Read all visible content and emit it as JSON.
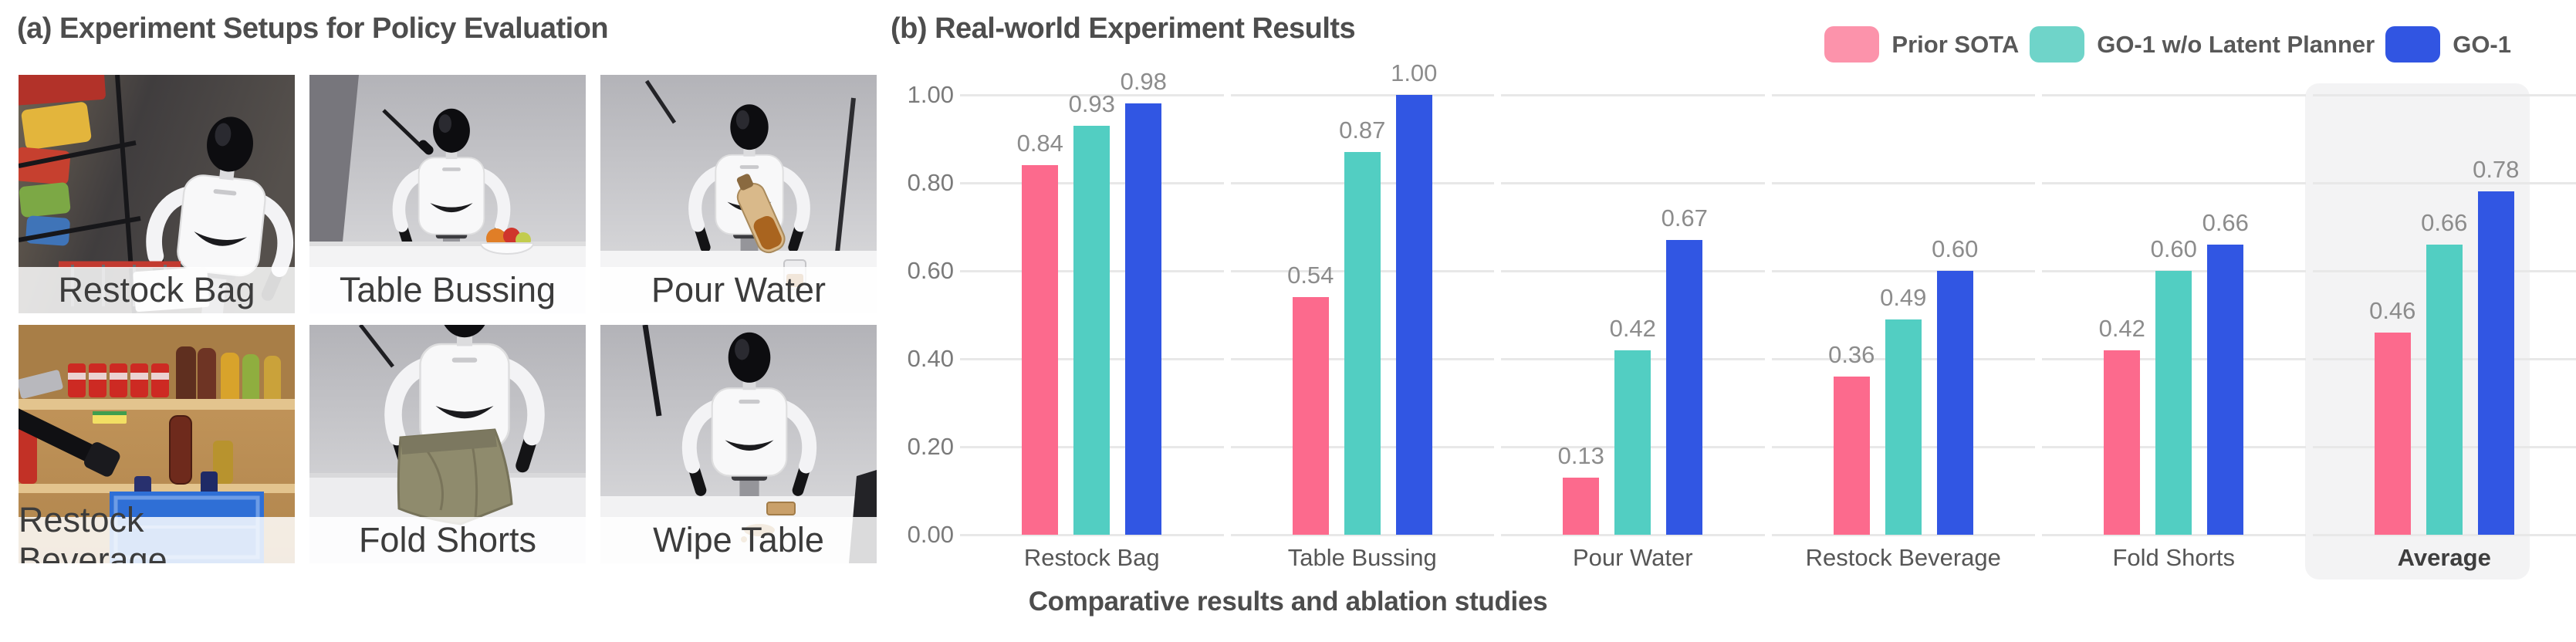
{
  "figure": {
    "caption": "Comparative results and ablation studies"
  },
  "panel_a": {
    "title": "(a) Experiment Setups for Policy Evaluation",
    "photos": [
      {
        "label": "Restock Bag",
        "scene": "restock-bag"
      },
      {
        "label": "Table Bussing",
        "scene": "table-bussing"
      },
      {
        "label": "Pour Water",
        "scene": "pour-water"
      },
      {
        "label": "Restock Beverage",
        "scene": "restock-beverage"
      },
      {
        "label": "Fold Shorts",
        "scene": "fold-shorts"
      },
      {
        "label": "Wipe Table",
        "scene": "wipe-table"
      }
    ]
  },
  "panel_b": {
    "title": "(b) Real-world Experiment Results",
    "legend": [
      {
        "label": "Prior SOTA",
        "swatch_color": "#FC93AB"
      },
      {
        "label": "GO-1 w/o Latent Planner",
        "swatch_color": "#6FD4C9"
      },
      {
        "label": "GO-1",
        "swatch_color": "#3155E2"
      }
    ]
  },
  "chart_data": {
    "type": "bar",
    "title": "(b) Real-world Experiment Results",
    "categories": [
      "Restock Bag",
      "Table Bussing",
      "Pour Water",
      "Restock Beverage",
      "Fold Shorts",
      "Average"
    ],
    "series": [
      {
        "name": "Prior SOTA",
        "color": "#FC6A8D",
        "values": [
          0.84,
          0.54,
          0.13,
          0.36,
          0.42,
          0.46
        ]
      },
      {
        "name": "GO-1 w/o Latent Planner",
        "color": "#52CEC2",
        "values": [
          0.93,
          0.87,
          0.42,
          0.49,
          0.6,
          0.66
        ]
      },
      {
        "name": "GO-1",
        "color": "#3156E3",
        "values": [
          0.98,
          1.0,
          0.67,
          0.6,
          0.66,
          0.78
        ]
      }
    ],
    "xlabel": "",
    "ylabel": "",
    "ylim": [
      0,
      1.0
    ],
    "ytick_labels": [
      "0.00",
      "0.20",
      "0.40",
      "0.60",
      "0.80",
      "1.00"
    ],
    "grid": true,
    "legend_position": "top-right",
    "highlighted_category": "Average",
    "highlight_color": "#F3F3F4",
    "gridline_color": "#E8E8E8",
    "value_label_decimals": 2
  }
}
